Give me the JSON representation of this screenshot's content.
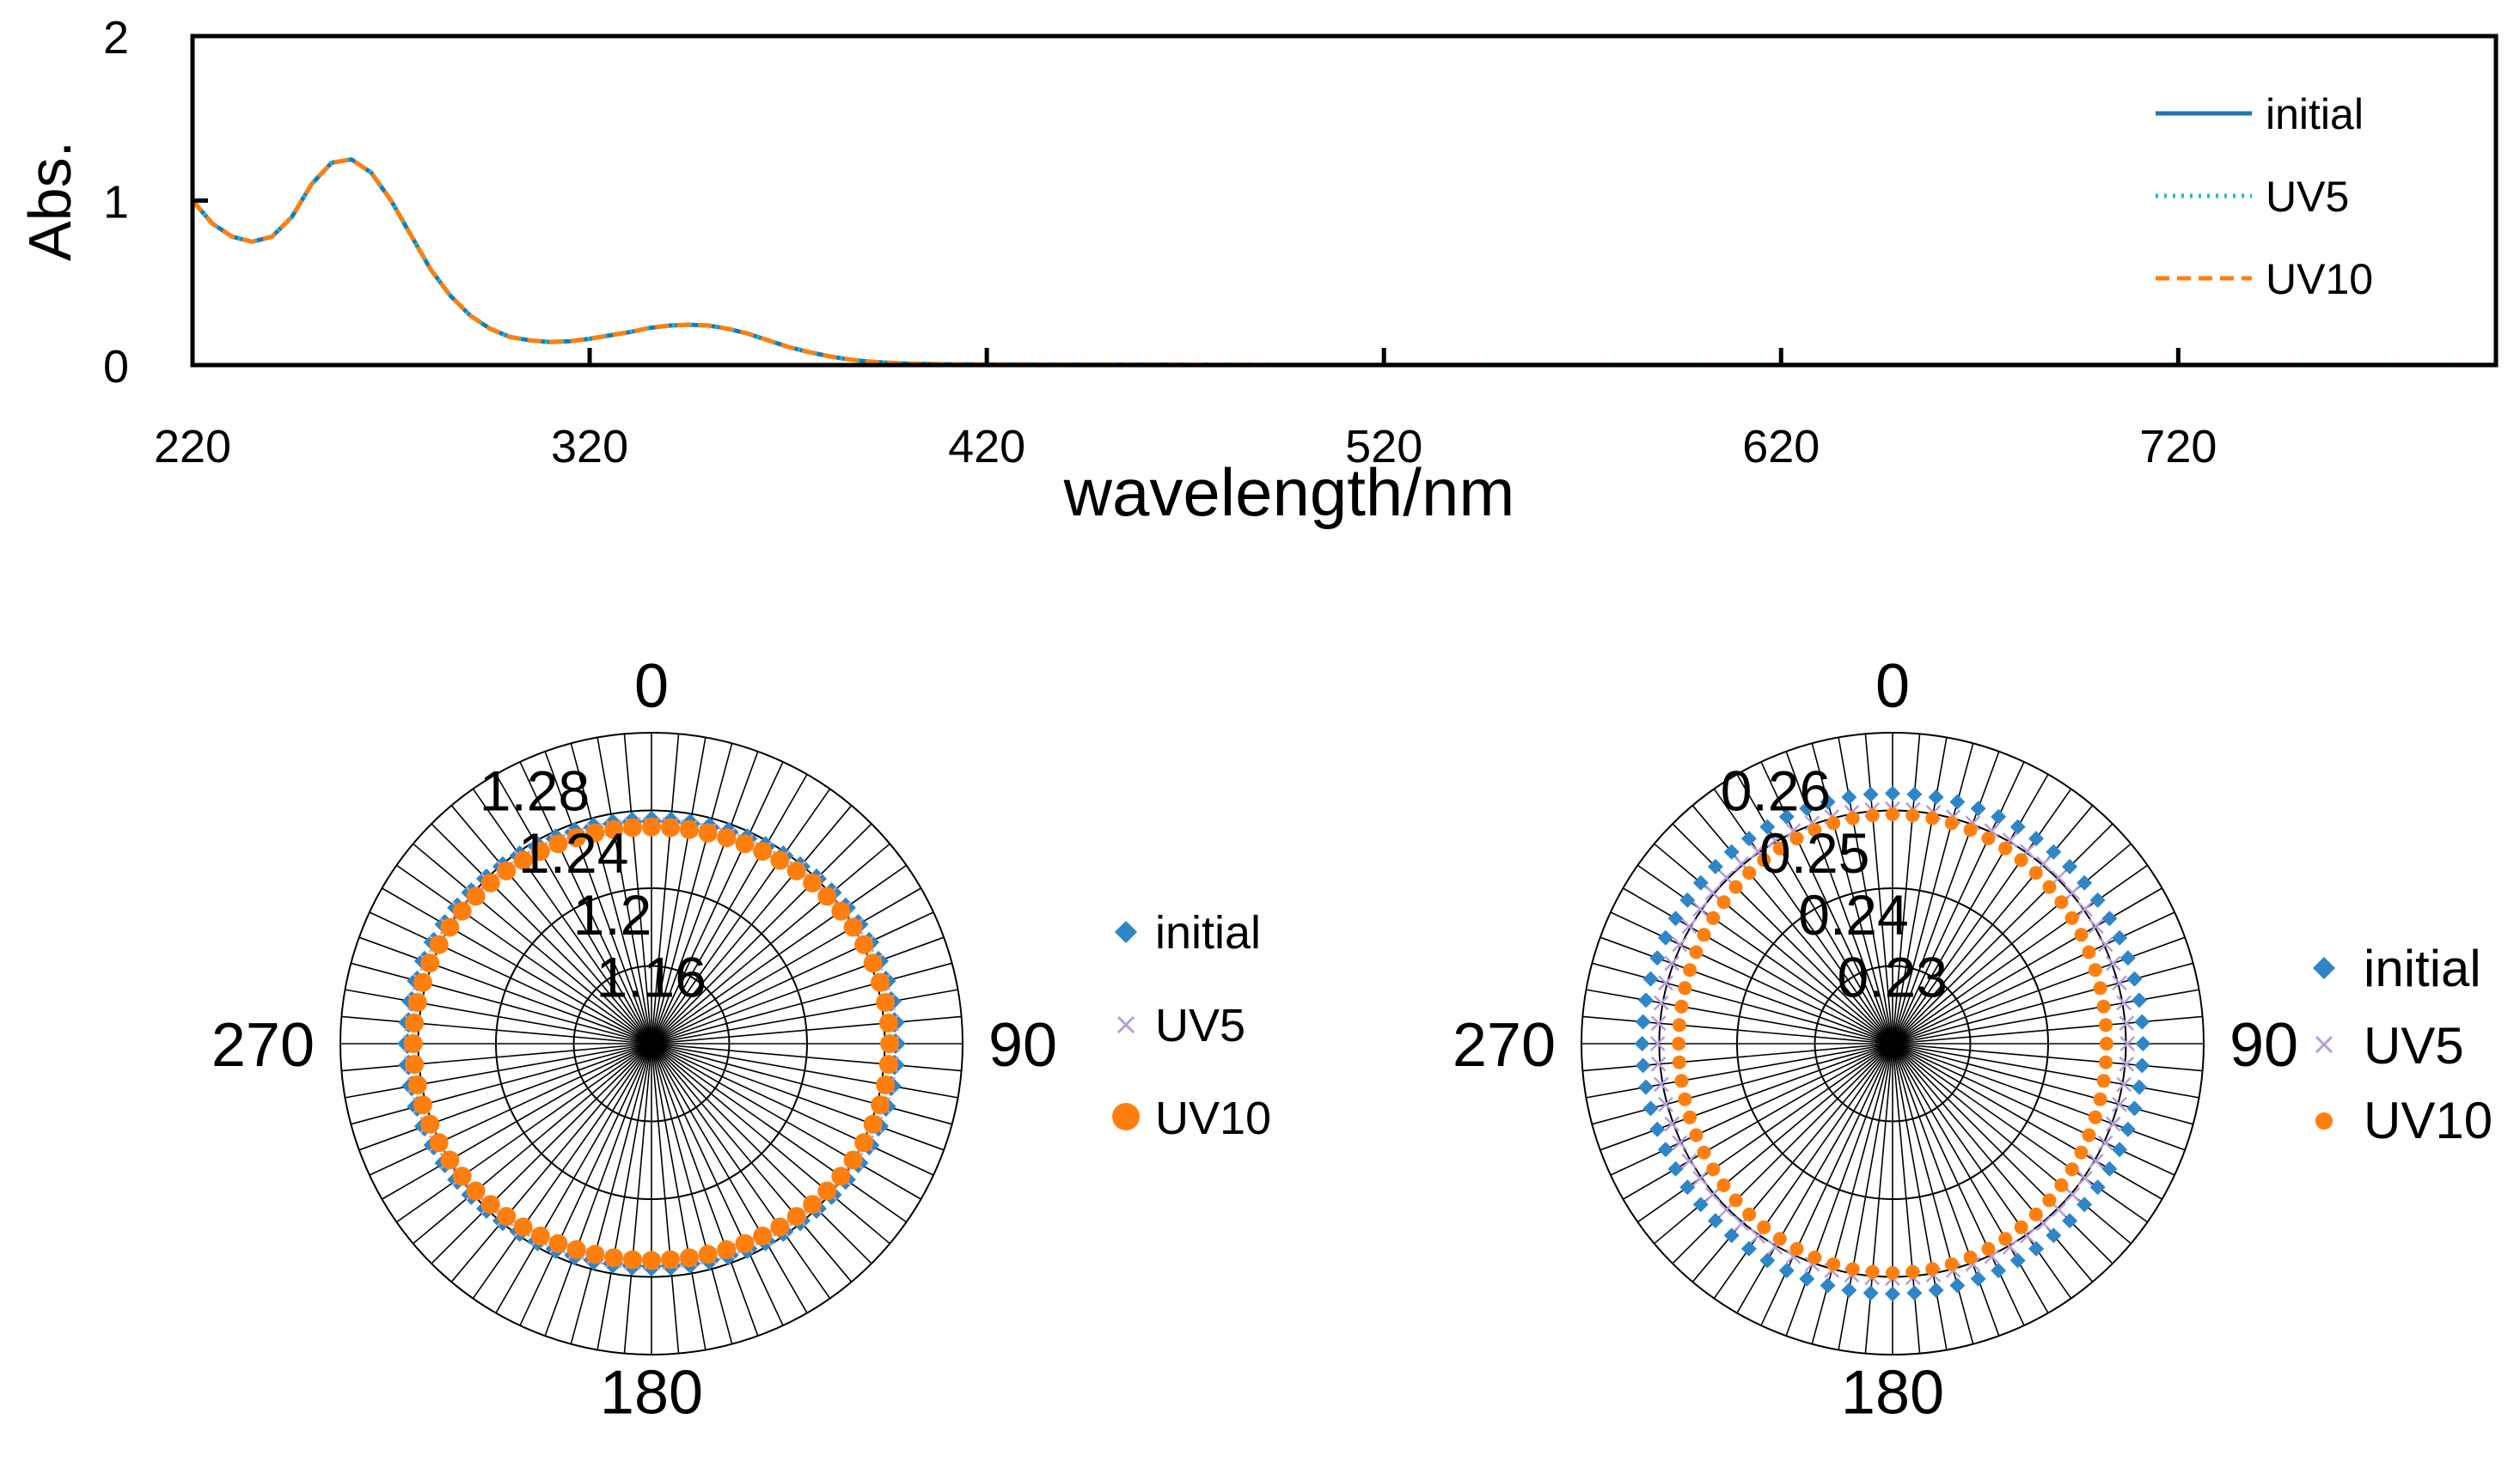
{
  "chart_data": [
    {
      "type": "line",
      "title": "",
      "xlabel": "wavelength/nm",
      "ylabel": "Abs.",
      "xlim": [
        220,
        800
      ],
      "ylim": [
        0,
        2
      ],
      "xticks": [
        220,
        320,
        420,
        520,
        620,
        720
      ],
      "yticks": [
        0,
        1,
        2
      ],
      "legend_position": "top-right",
      "x": [
        220,
        225,
        230,
        235,
        240,
        245,
        250,
        255,
        260,
        265,
        270,
        275,
        280,
        285,
        290,
        295,
        300,
        305,
        310,
        315,
        320,
        325,
        330,
        335,
        340,
        345,
        350,
        355,
        360,
        365,
        370,
        375,
        380,
        385,
        390,
        395,
        400,
        410,
        420,
        440,
        460,
        500,
        560,
        620,
        680,
        740,
        800
      ],
      "series": [
        {
          "name": "initial",
          "color": "#1f77b4",
          "style": "solid",
          "values": [
            1.0,
            0.86,
            0.78,
            0.75,
            0.78,
            0.9,
            1.1,
            1.23,
            1.25,
            1.17,
            1.0,
            0.79,
            0.58,
            0.42,
            0.3,
            0.22,
            0.17,
            0.15,
            0.14,
            0.145,
            0.16,
            0.18,
            0.2,
            0.225,
            0.24,
            0.245,
            0.24,
            0.22,
            0.19,
            0.15,
            0.11,
            0.08,
            0.055,
            0.035,
            0.022,
            0.014,
            0.009,
            0.005,
            0.004,
            0.003,
            0.003,
            0.002,
            0.002,
            0.002,
            0.002,
            0.002,
            0.002
          ]
        },
        {
          "name": "UV5",
          "color": "#17becf",
          "style": "dotted",
          "values": [
            1.0,
            0.86,
            0.78,
            0.75,
            0.78,
            0.9,
            1.1,
            1.23,
            1.25,
            1.17,
            1.0,
            0.79,
            0.58,
            0.42,
            0.3,
            0.22,
            0.17,
            0.15,
            0.14,
            0.145,
            0.16,
            0.18,
            0.2,
            0.225,
            0.24,
            0.245,
            0.24,
            0.22,
            0.19,
            0.15,
            0.11,
            0.08,
            0.055,
            0.035,
            0.022,
            0.014,
            0.009,
            0.005,
            0.004,
            0.003,
            0.003,
            0.002,
            0.002,
            0.002,
            0.002,
            0.002,
            0.002
          ]
        },
        {
          "name": "UV10",
          "color": "#ff7f0e",
          "style": "dashed",
          "values": [
            1.0,
            0.86,
            0.78,
            0.75,
            0.78,
            0.9,
            1.1,
            1.23,
            1.25,
            1.17,
            1.0,
            0.79,
            0.58,
            0.42,
            0.3,
            0.22,
            0.17,
            0.15,
            0.14,
            0.145,
            0.16,
            0.18,
            0.2,
            0.225,
            0.24,
            0.245,
            0.24,
            0.22,
            0.19,
            0.15,
            0.11,
            0.08,
            0.055,
            0.035,
            0.022,
            0.014,
            0.009,
            0.005,
            0.004,
            0.003,
            0.003,
            0.002,
            0.002,
            0.002,
            0.002,
            0.002,
            0.002
          ]
        }
      ]
    },
    {
      "type": "polar-scatter",
      "title": "",
      "angle_labels": [
        "0",
        "90",
        "180",
        "270"
      ],
      "radial_ticks": [
        1.16,
        1.2,
        1.24,
        1.28
      ],
      "radial_tick_labels": [
        "1.16",
        "1.2",
        "1.24",
        "1.28"
      ],
      "rlim": [
        1.12,
        1.28
      ],
      "angle_step_deg": 5,
      "legend_position": "right",
      "series": [
        {
          "name": "initial",
          "color": "#2e86c8",
          "marker": "diamond",
          "r_avg": 1.24,
          "r_horizontal": 1.2455,
          "r_vertical": 1.2345
        },
        {
          "name": "UV5",
          "color": "#b39ddb",
          "marker": "x",
          "r_avg": 1.238,
          "r_horizontal": 1.2435,
          "r_vertical": 1.2325
        },
        {
          "name": "UV10",
          "color": "#ff7f0e",
          "marker": "circle",
          "r_avg": 1.237,
          "r_horizontal": 1.2425,
          "r_vertical": 1.2315
        }
      ]
    },
    {
      "type": "polar-scatter",
      "title": "",
      "angle_labels": [
        "0",
        "90",
        "180",
        "270"
      ],
      "radial_ticks": [
        0.23,
        0.24,
        0.25,
        0.26
      ],
      "radial_tick_labels": [
        "0.23",
        "0.24",
        "0.25",
        "0.26"
      ],
      "rlim": [
        0.22,
        0.26
      ],
      "angle_step_deg": 5,
      "legend_position": "right",
      "series": [
        {
          "name": "initial",
          "color": "#2e86c8",
          "marker": "diamond",
          "r_avg": 0.2522,
          "r_horizontal": 0.2522,
          "r_vertical": 0.2522
        },
        {
          "name": "UV5",
          "color": "#b39ddb",
          "marker": "x",
          "r_avg": 0.2502,
          "r_horizontal": 0.2502,
          "r_vertical": 0.2502
        },
        {
          "name": "UV10",
          "color": "#ff7f0e",
          "marker": "circle",
          "r_avg": 0.2485,
          "r_horizontal": 0.2475,
          "r_vertical": 0.2495
        }
      ]
    }
  ]
}
